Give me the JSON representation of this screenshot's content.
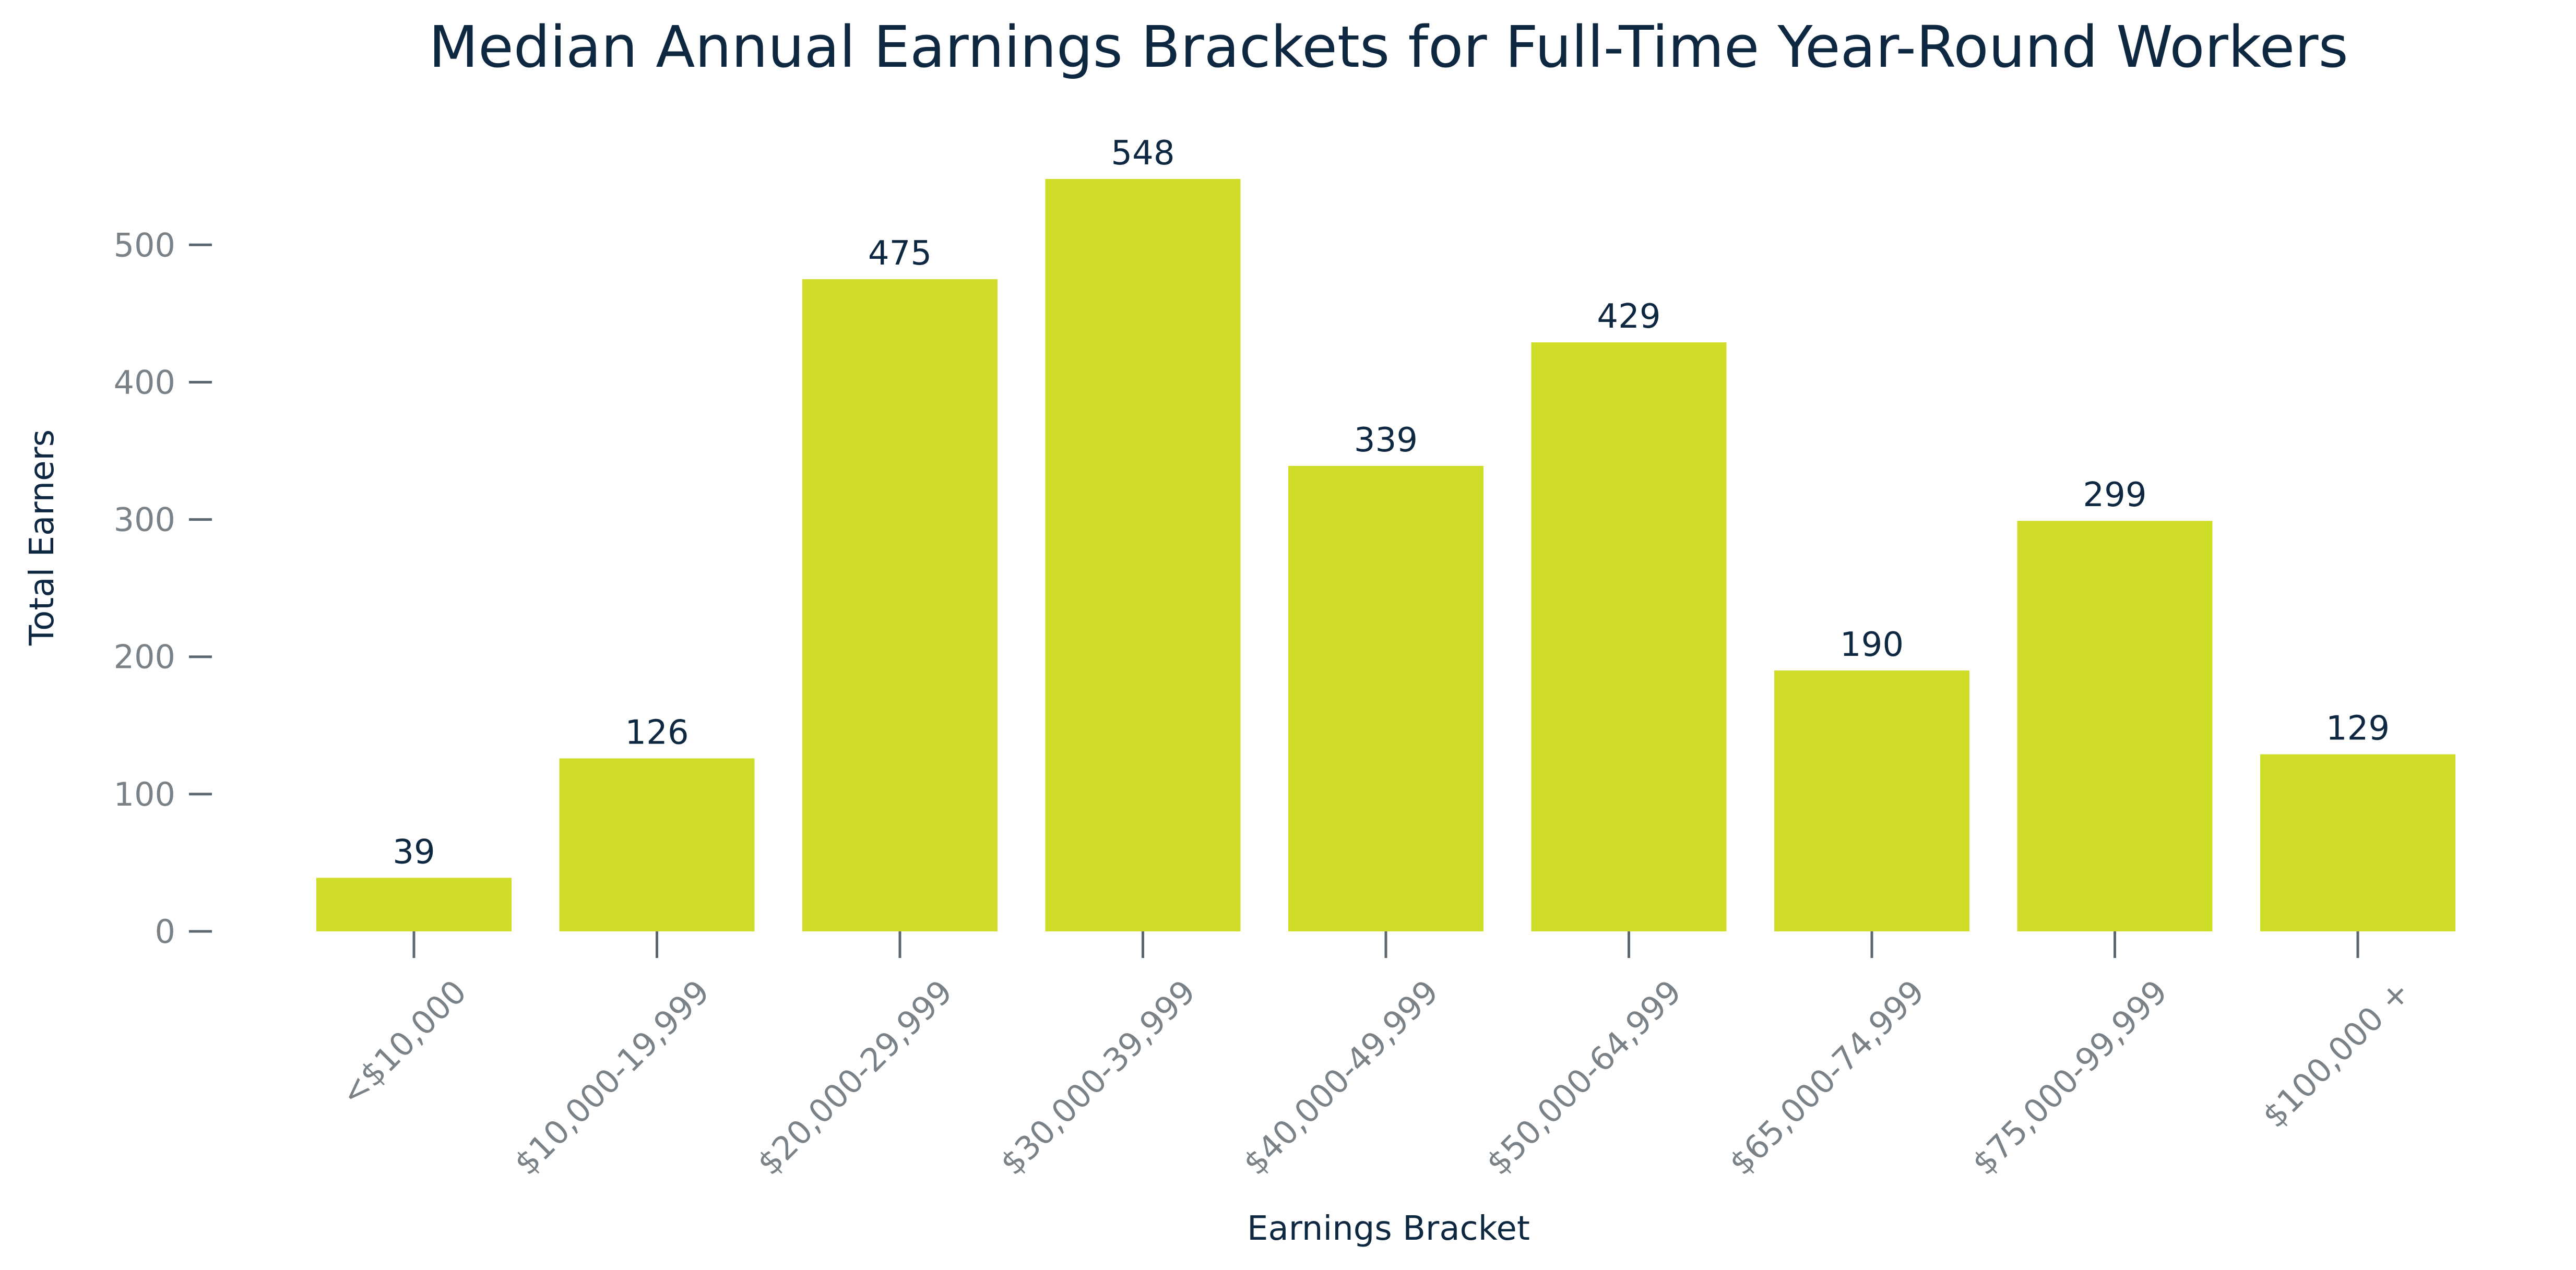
{
  "chart_data": {
    "type": "bar",
    "title": "Median Annual Earnings Brackets for Full-Time Year-Round Workers",
    "xlabel": "Earnings Bracket",
    "ylabel": "Total Earners",
    "categories": [
      "<$10,000",
      "$10,000-19,999",
      "$20,000-29,999",
      "$30,000-39,999",
      "$40,000-49,999",
      "$50,000-64,999",
      "$65,000-74,999",
      "$75,000-99,999",
      "$100,000 +"
    ],
    "values": [
      39,
      126,
      475,
      548,
      339,
      429,
      190,
      299,
      129
    ],
    "data_labels": [
      "39",
      "126",
      "475",
      "548",
      "339",
      "429",
      "190",
      "299",
      "129"
    ],
    "yticks": [
      0,
      100,
      200,
      300,
      400,
      500
    ],
    "ytick_labels": [
      "0",
      "100",
      "200",
      "300",
      "400",
      "500"
    ],
    "ylim": [
      0,
      548
    ],
    "grid": false,
    "legend": "none",
    "colors": {
      "bar": "#cfdd29",
      "title": "#0f2842",
      "tick_text": "#7a8288",
      "tick_line": "#5b6770"
    }
  }
}
